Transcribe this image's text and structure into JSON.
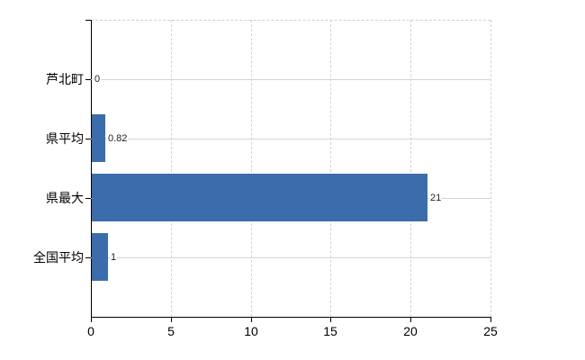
{
  "chart_data": {
    "type": "bar",
    "orientation": "horizontal",
    "categories": [
      "芦北町",
      "県平均",
      "県最大",
      "全国平均"
    ],
    "values": [
      0,
      0.82,
      21,
      1
    ],
    "value_labels": [
      "0",
      "0.82",
      "21",
      "1"
    ],
    "x_tick_labels": [
      "0",
      "5",
      "10",
      "15",
      "20",
      "25"
    ],
    "x_tick_values": [
      0,
      5,
      10,
      15,
      20,
      25
    ],
    "xlim": [
      0,
      25
    ],
    "grid": true,
    "gridline_style": {
      "vertical": "dashed",
      "horizontal": "solid"
    },
    "colors": {
      "bar": "#3d6cac",
      "axis": "#000000",
      "h_gridline": "#d3d8ce",
      "v_gridline": "#d8d3d0",
      "dashed_border": "#d4d0ce",
      "category_text": "#000000",
      "value_text": "#222222",
      "background": "#ffffff"
    }
  }
}
